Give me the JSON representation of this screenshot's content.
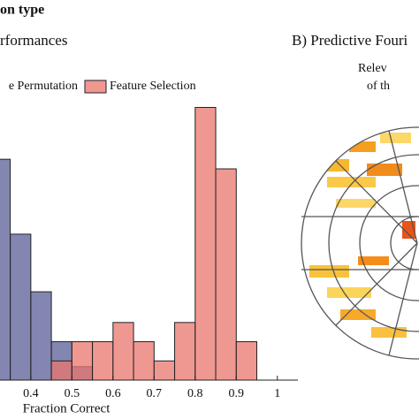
{
  "chart_data": {
    "type": "histogram",
    "title": "on type",
    "subtitle": "rformances",
    "panel_b_title": "B) Predictive Fouri",
    "panel_b_notes": [
      "Relev",
      "of th"
    ],
    "xlabel": "Fraction Correct",
    "bins": [
      0.3,
      0.35,
      0.4,
      0.45,
      0.5,
      0.55,
      0.6,
      0.65,
      0.7,
      0.75,
      0.8,
      0.85,
      0.9,
      0.95
    ],
    "series": [
      {
        "name": "e Permutation",
        "color": "#5a5e96",
        "values": [
          11.5,
          7.6,
          4.6,
          2,
          0.7,
          0,
          0,
          0,
          0,
          0,
          0,
          0,
          0
        ]
      },
      {
        "name": "Feature Selection",
        "color": "#e9756d",
        "values": [
          0,
          0,
          0,
          1,
          2,
          2,
          3,
          2,
          1,
          3,
          14.2,
          11,
          2
        ]
      }
    ],
    "xlim": [
      0.325,
      1.05
    ],
    "xticks": [
      0.4,
      0.5,
      0.6,
      0.7,
      0.8,
      0.9,
      1
    ],
    "ylim": [
      0,
      14.5
    ],
    "legend": "top"
  }
}
